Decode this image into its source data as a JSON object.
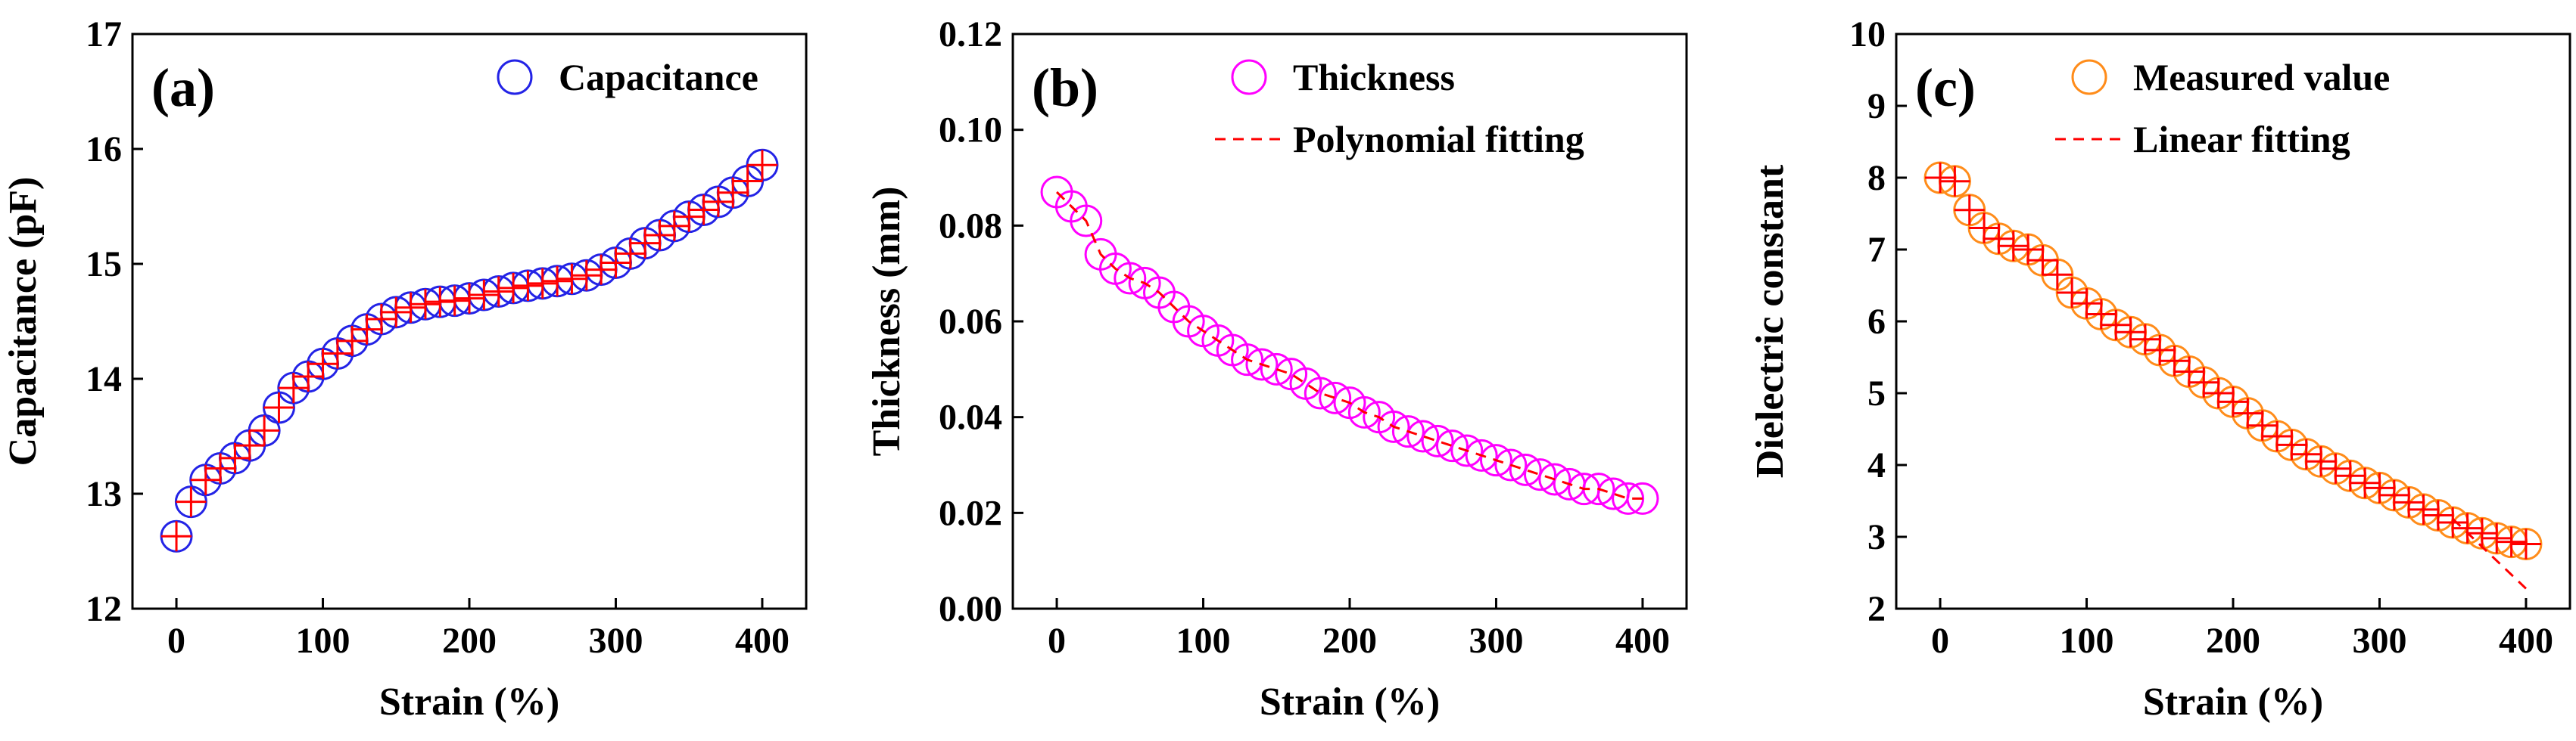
{
  "chart_data": [
    {
      "type": "scatter",
      "panel_tag": "(a)",
      "xlabel": "Strain (%)",
      "ylabel": "Capacitance (pF)",
      "xlim": [
        -30,
        430
      ],
      "ylim": [
        12,
        17
      ],
      "xticks": [
        0,
        100,
        200,
        300,
        400
      ],
      "yticks": [
        12,
        13,
        14,
        15,
        16,
        17
      ],
      "xtick_labels": [
        "0",
        "100",
        "200",
        "300",
        "400"
      ],
      "ytick_labels": [
        "12",
        "13",
        "14",
        "15",
        "16",
        "17"
      ],
      "legend_position": "top-right",
      "series": [
        {
          "name": "Capacitance",
          "marker": "open-circle",
          "color": "#2323e6",
          "x": [
            0,
            10,
            20,
            30,
            40,
            50,
            60,
            70,
            80,
            90,
            100,
            110,
            120,
            130,
            140,
            150,
            160,
            170,
            180,
            190,
            200,
            210,
            220,
            230,
            240,
            250,
            260,
            270,
            280,
            290,
            300,
            310,
            320,
            330,
            340,
            350,
            360,
            370,
            380,
            390,
            400
          ],
          "y": [
            12.63,
            12.93,
            13.12,
            13.22,
            13.31,
            13.42,
            13.55,
            13.75,
            13.92,
            14.02,
            14.13,
            14.22,
            14.33,
            14.43,
            14.52,
            14.58,
            14.62,
            14.65,
            14.67,
            14.68,
            14.7,
            14.73,
            14.76,
            14.79,
            14.81,
            14.83,
            14.85,
            14.87,
            14.9,
            14.95,
            15.01,
            15.09,
            15.18,
            15.25,
            15.33,
            15.41,
            15.47,
            15.54,
            15.62,
            15.72,
            15.86
          ]
        },
        {
          "name": "",
          "marker": "plus",
          "color": "#ff0000",
          "x": [
            0,
            10,
            20,
            30,
            40,
            50,
            60,
            70,
            80,
            90,
            100,
            110,
            120,
            130,
            140,
            150,
            160,
            170,
            180,
            190,
            200,
            210,
            220,
            230,
            240,
            250,
            260,
            270,
            280,
            290,
            300,
            310,
            320,
            330,
            340,
            350,
            360,
            370,
            380,
            390,
            400
          ],
          "y": [
            12.63,
            12.93,
            13.12,
            13.22,
            13.31,
            13.42,
            13.55,
            13.75,
            13.92,
            14.02,
            14.13,
            14.22,
            14.33,
            14.43,
            14.52,
            14.58,
            14.62,
            14.65,
            14.67,
            14.68,
            14.7,
            14.73,
            14.76,
            14.79,
            14.81,
            14.83,
            14.85,
            14.87,
            14.9,
            14.95,
            15.01,
            15.09,
            15.18,
            15.25,
            15.33,
            15.41,
            15.47,
            15.54,
            15.62,
            15.72,
            15.86
          ]
        }
      ]
    },
    {
      "type": "scatter",
      "panel_tag": "(b)",
      "xlabel": "Strain (%)",
      "ylabel": "Thickness (mm)",
      "xlim": [
        -30,
        430
      ],
      "ylim": [
        0,
        0.12
      ],
      "xticks": [
        0,
        100,
        200,
        300,
        400
      ],
      "yticks": [
        0,
        0.02,
        0.04,
        0.06,
        0.08,
        0.1,
        0.12
      ],
      "xtick_labels": [
        "0",
        "100",
        "200",
        "300",
        "400"
      ],
      "ytick_labels": [
        "0.00",
        "0.02",
        "0.04",
        "0.06",
        "0.08",
        "0.10",
        "0.12"
      ],
      "legend_position": "top-right",
      "series": [
        {
          "name": "Thickness",
          "marker": "open-circle",
          "color": "#ff00ff",
          "x": [
            0,
            10,
            20,
            30,
            40,
            50,
            60,
            70,
            80,
            90,
            100,
            110,
            120,
            130,
            140,
            150,
            160,
            170,
            180,
            190,
            200,
            210,
            220,
            230,
            240,
            250,
            260,
            270,
            280,
            290,
            300,
            310,
            320,
            330,
            340,
            350,
            360,
            370,
            380,
            390,
            400
          ],
          "y": [
            0.087,
            0.084,
            0.081,
            0.074,
            0.071,
            0.069,
            0.068,
            0.066,
            0.063,
            0.06,
            0.058,
            0.056,
            0.054,
            0.052,
            0.051,
            0.05,
            0.049,
            0.047,
            0.045,
            0.044,
            0.043,
            0.041,
            0.04,
            0.038,
            0.037,
            0.036,
            0.035,
            0.034,
            0.033,
            0.032,
            0.031,
            0.03,
            0.029,
            0.028,
            0.027,
            0.026,
            0.025,
            0.025,
            0.024,
            0.023,
            0.023
          ]
        },
        {
          "name": "Polynomial fitting",
          "marker": "dashed-line",
          "color": "#ff0000",
          "x": [
            0,
            10,
            20,
            30,
            40,
            50,
            60,
            70,
            80,
            90,
            100,
            110,
            120,
            130,
            140,
            150,
            160,
            170,
            180,
            190,
            200,
            210,
            220,
            230,
            240,
            250,
            260,
            270,
            280,
            290,
            300,
            310,
            320,
            330,
            340,
            350,
            360,
            370,
            380,
            390,
            400
          ],
          "y": [
            0.087,
            0.084,
            0.081,
            0.074,
            0.071,
            0.069,
            0.068,
            0.066,
            0.063,
            0.06,
            0.058,
            0.056,
            0.054,
            0.052,
            0.051,
            0.05,
            0.049,
            0.047,
            0.045,
            0.044,
            0.043,
            0.041,
            0.04,
            0.038,
            0.037,
            0.036,
            0.035,
            0.034,
            0.033,
            0.032,
            0.031,
            0.03,
            0.029,
            0.028,
            0.027,
            0.026,
            0.025,
            0.025,
            0.024,
            0.023,
            0.023
          ]
        }
      ]
    },
    {
      "type": "scatter",
      "panel_tag": "(c)",
      "xlabel": "Strain (%)",
      "ylabel": "Dielectric constant",
      "xlim": [
        -30,
        430
      ],
      "ylim": [
        2,
        10
      ],
      "xticks": [
        0,
        100,
        200,
        300,
        400
      ],
      "yticks": [
        2,
        3,
        4,
        5,
        6,
        7,
        8,
        9,
        10
      ],
      "xtick_labels": [
        "0",
        "100",
        "200",
        "300",
        "400"
      ],
      "ytick_labels": [
        "2",
        "3",
        "4",
        "5",
        "6",
        "7",
        "8",
        "9",
        "10"
      ],
      "legend_position": "top-right",
      "series": [
        {
          "name": "Measured value",
          "marker": "open-circle",
          "color": "#ff8c1a",
          "x": [
            0,
            10,
            20,
            30,
            40,
            50,
            60,
            70,
            80,
            90,
            100,
            110,
            120,
            130,
            140,
            150,
            160,
            170,
            180,
            190,
            200,
            210,
            220,
            230,
            240,
            250,
            260,
            270,
            280,
            290,
            300,
            310,
            320,
            330,
            340,
            350,
            360,
            370,
            380,
            390,
            400
          ],
          "y": [
            8.0,
            7.95,
            7.55,
            7.3,
            7.15,
            7.05,
            7.0,
            6.85,
            6.65,
            6.4,
            6.25,
            6.1,
            5.95,
            5.85,
            5.75,
            5.6,
            5.45,
            5.3,
            5.15,
            5.0,
            4.88,
            4.72,
            4.55,
            4.4,
            4.28,
            4.15,
            4.05,
            3.95,
            3.85,
            3.75,
            3.68,
            3.58,
            3.48,
            3.38,
            3.3,
            3.2,
            3.12,
            3.05,
            2.98,
            2.93,
            2.9
          ]
        },
        {
          "name": "",
          "marker": "plus",
          "color": "#ff0000",
          "x": [
            0,
            10,
            20,
            30,
            40,
            50,
            60,
            70,
            80,
            90,
            100,
            110,
            120,
            130,
            140,
            150,
            160,
            170,
            180,
            190,
            200,
            210,
            220,
            230,
            240,
            250,
            260,
            270,
            280,
            290,
            300,
            310,
            320,
            330,
            340,
            350,
            360,
            370,
            380,
            390,
            400
          ],
          "y": [
            8.0,
            7.95,
            7.55,
            7.3,
            7.15,
            7.05,
            7.0,
            6.85,
            6.65,
            6.4,
            6.25,
            6.1,
            5.95,
            5.85,
            5.75,
            5.6,
            5.45,
            5.3,
            5.15,
            5.0,
            4.88,
            4.72,
            4.55,
            4.4,
            4.28,
            4.15,
            4.05,
            3.95,
            3.85,
            3.75,
            3.68,
            3.58,
            3.48,
            3.38,
            3.3,
            3.2,
            3.12,
            3.05,
            2.98,
            2.93,
            2.9
          ]
        },
        {
          "name": "Linear fitting",
          "marker": "dashed-line",
          "color": "#ff0000",
          "x": [
            350,
            400
          ],
          "y": [
            3.25,
            2.28
          ]
        }
      ]
    }
  ]
}
